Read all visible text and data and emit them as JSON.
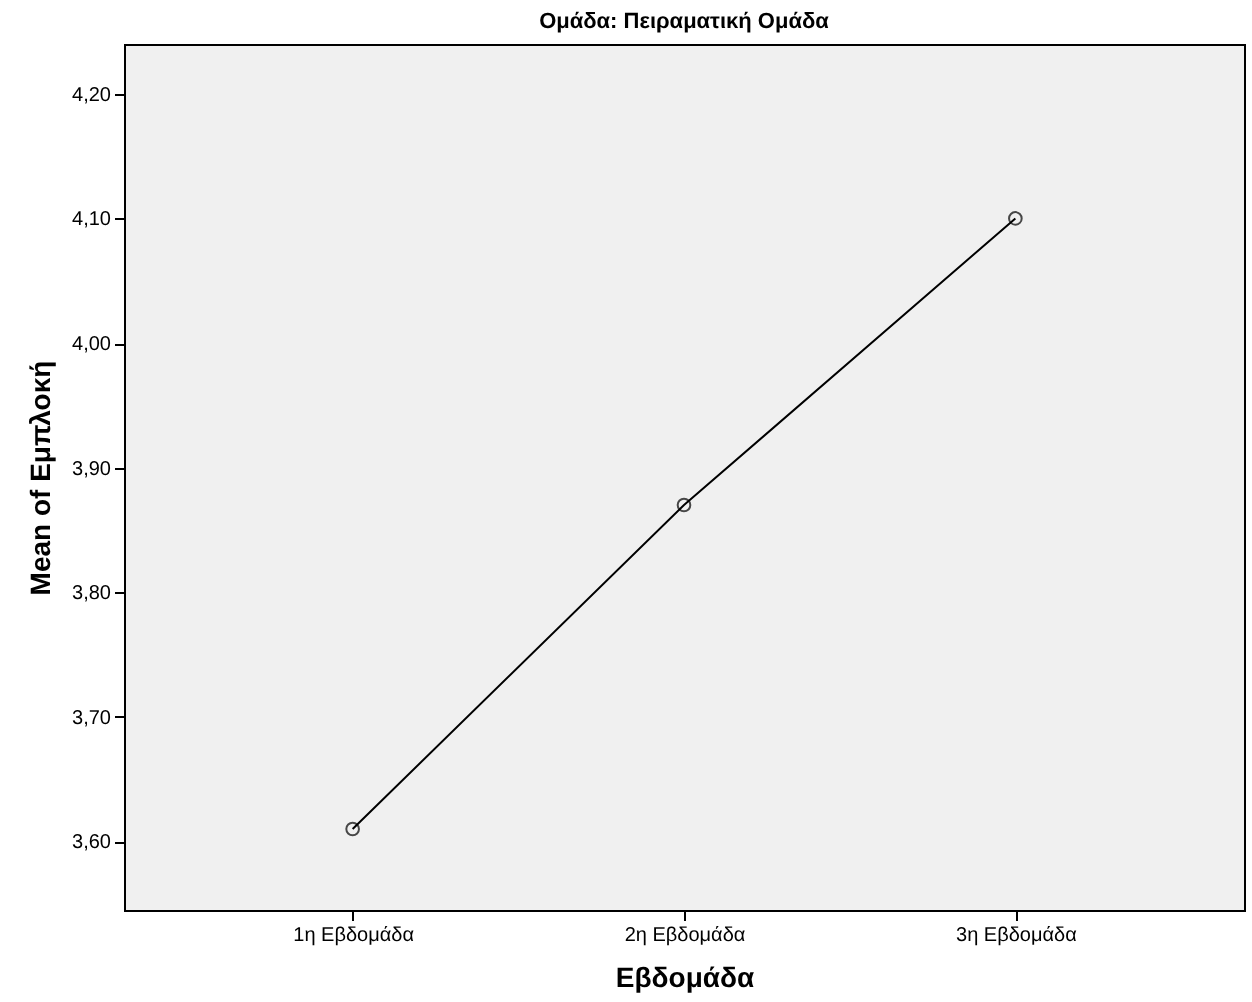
{
  "chart_data": {
    "type": "line",
    "title": "Ομάδα: Πειραματική Ομάδα",
    "xlabel": "Εβδομάδα",
    "ylabel": "Mean of Εμπλοκή",
    "categories": [
      "1η Εβδομάδα",
      "2η Εβδομάδα",
      "3η Εβδομάδα"
    ],
    "series": [
      {
        "color": "#000000",
        "values": [
          3.61,
          3.87,
          4.1
        ]
      }
    ],
    "ylim": [
      3.545,
      4.24
    ],
    "yticks": [
      {
        "value": 3.6,
        "label": "3,60"
      },
      {
        "value": 3.7,
        "label": "3,70"
      },
      {
        "value": 3.8,
        "label": "3,80"
      },
      {
        "value": 3.9,
        "label": "3,90"
      },
      {
        "value": 4.0,
        "label": "4,00"
      },
      {
        "value": 4.1,
        "label": "4,10"
      },
      {
        "value": 4.2,
        "label": "4,20"
      }
    ],
    "grid": false,
    "marker": "circle",
    "line_style": "solid"
  }
}
